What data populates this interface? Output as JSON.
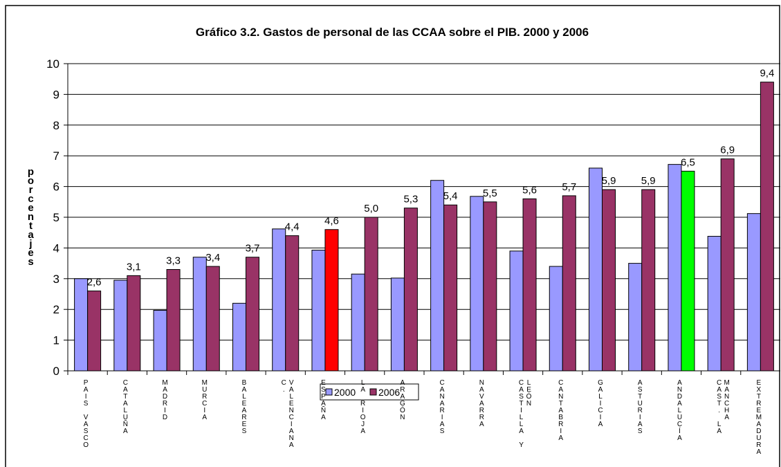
{
  "chart_data": {
    "type": "bar",
    "title": "Gráfico 3.2. Gastos de personal de las CCAA sobre el PIB. 2000 y 2006",
    "y_label": "porcentajes",
    "categories": [
      "PAIS VASCO",
      "CATALUÑA",
      "MADRID",
      "MURCIA",
      "BALEARES",
      "C. VALENCIANA",
      "ESPAÑA",
      "LA RIOJA",
      "ARAGÓN",
      "CANARIAS",
      "NAVARRA",
      "CASTILLA Y LEÓN",
      "CANTABRIA",
      "GALICIA",
      "ASTURIAS",
      "ANDALUCÍA",
      "CAST. LA MANCHA",
      "EXTREMADURA"
    ],
    "series": [
      {
        "name": "2000",
        "color": "#9999ff",
        "values": [
          3.0,
          2.95,
          1.97,
          3.7,
          2.2,
          4.62,
          3.93,
          3.15,
          3.02,
          6.2,
          5.68,
          3.9,
          3.4,
          6.6,
          3.5,
          6.72,
          4.38,
          5.12
        ]
      },
      {
        "name": "2006",
        "color": "#993366",
        "values": [
          2.6,
          3.1,
          3.3,
          3.4,
          3.7,
          4.4,
          4.6,
          5.0,
          5.3,
          5.4,
          5.5,
          5.6,
          5.7,
          5.9,
          5.9,
          6.5,
          6.9,
          9.4
        ],
        "value_labels": [
          "2,6",
          "3,1",
          "3,3",
          "3,4",
          "3,7",
          "4,4",
          "4,6",
          "5,0",
          "5,3",
          "5,4",
          "5,5",
          "5,6",
          "5,7",
          "5,9",
          "5,9",
          "6,5",
          "6,9",
          "9,4"
        ],
        "highlights": [
          {
            "index": 6,
            "color": "#ff0000"
          },
          {
            "index": 15,
            "color": "#00ff00"
          }
        ]
      }
    ],
    "ylim": [
      0,
      10
    ],
    "yticks": [
      0,
      1,
      2,
      3,
      4,
      5,
      6,
      7,
      8,
      9,
      10
    ],
    "grid": true,
    "legend": "bottom"
  }
}
